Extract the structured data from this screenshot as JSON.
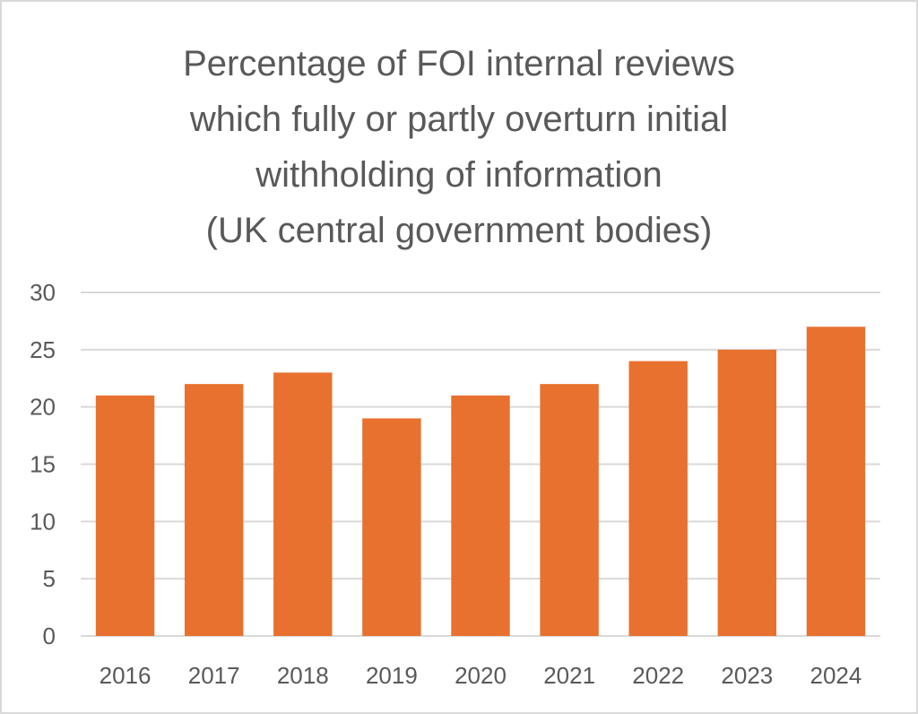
{
  "chart_data": {
    "type": "bar",
    "title_lines": [
      "Percentage of FOI internal reviews",
      "which fully or partly overturn initial",
      "withholding of information",
      "(UK central government bodies)"
    ],
    "categories": [
      "2016",
      "2017",
      "2018",
      "2019",
      "2020",
      "2021",
      "2022",
      "2023",
      "2024"
    ],
    "values": [
      21,
      22,
      23,
      19,
      21,
      22,
      24,
      25,
      27
    ],
    "xlabel": "",
    "ylabel": "",
    "ylim": [
      0,
      30
    ],
    "yticks": [
      "0",
      "5",
      "10",
      "15",
      "20",
      "25",
      "30"
    ],
    "grid": true,
    "legend": "none",
    "bar_color": "#e8712f",
    "grid_color": "#d9d9d9"
  }
}
